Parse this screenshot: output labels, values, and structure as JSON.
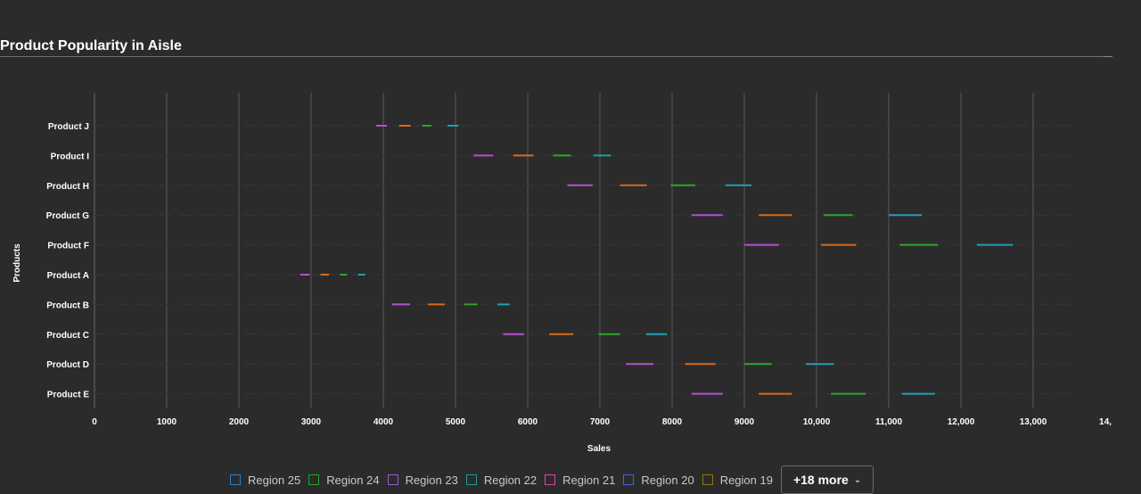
{
  "page": {
    "title": "Product Popularity in Aisle"
  },
  "legend": {
    "items": [
      {
        "label": "Region 25",
        "color": "#2f7fc1"
      },
      {
        "label": "Region 24",
        "color": "#25a52b"
      },
      {
        "label": "Region 23",
        "color": "#9b59d6"
      },
      {
        "label": "Region 22",
        "color": "#1f9b94"
      },
      {
        "label": "Region 21",
        "color": "#e0479e"
      },
      {
        "label": "Region 20",
        "color": "#4a5ee0"
      },
      {
        "label": "Region 19",
        "color": "#8a7a10"
      }
    ],
    "more_label": "+18 more",
    "more_icon": "chevron-down-icon"
  },
  "chart_data": {
    "type": "range",
    "title": "Product Popularity in Aisle",
    "xlabel": "Sales",
    "ylabel": "Products",
    "xlim": [
      0,
      14000
    ],
    "x_ticks": [
      "0",
      "1000",
      "2000",
      "3000",
      "4000",
      "5000",
      "6000",
      "7000",
      "8000",
      "9000",
      "10,000",
      "11,000",
      "12,000",
      "13,000",
      "14,"
    ],
    "grid": "vertical",
    "legend_position": "bottom",
    "categories": [
      "Product J",
      "Product I",
      "Product H",
      "Product G",
      "Product F",
      "Product A",
      "Product B",
      "Product C",
      "Product D",
      "Product E"
    ],
    "series": [
      {
        "color": "#b44fd6",
        "ranges": [
          [
            3900,
            4050
          ],
          [
            5250,
            5520
          ],
          [
            6550,
            6900
          ],
          [
            8270,
            8700
          ],
          [
            9000,
            9480
          ],
          [
            2850,
            2980
          ],
          [
            4120,
            4370
          ],
          [
            5660,
            5950
          ],
          [
            7360,
            7740
          ],
          [
            8270,
            8700
          ]
        ]
      },
      {
        "color": "#d96a1a",
        "ranges": [
          [
            4220,
            4380
          ],
          [
            5800,
            6080
          ],
          [
            7280,
            7650
          ],
          [
            9200,
            9660
          ],
          [
            10060,
            10550
          ],
          [
            3130,
            3250
          ],
          [
            4620,
            4850
          ],
          [
            6300,
            6630
          ],
          [
            8180,
            8600
          ],
          [
            9200,
            9660
          ]
        ]
      },
      {
        "color": "#2aa82a",
        "ranges": [
          [
            4540,
            4670
          ],
          [
            6350,
            6600
          ],
          [
            7980,
            8320
          ],
          [
            10100,
            10500
          ],
          [
            11150,
            11680
          ],
          [
            3400,
            3500
          ],
          [
            5120,
            5300
          ],
          [
            6980,
            7280
          ],
          [
            9000,
            9380
          ],
          [
            10200,
            10680
          ]
        ]
      },
      {
        "color": "#21a0b2",
        "ranges": [
          [
            4890,
            5040
          ],
          [
            6910,
            7150
          ],
          [
            8740,
            9100
          ],
          [
            11000,
            11460
          ],
          [
            12220,
            12720
          ],
          [
            3650,
            3750
          ],
          [
            5580,
            5750
          ],
          [
            7640,
            7930
          ],
          [
            9850,
            10240
          ],
          [
            11180,
            11640
          ]
        ]
      }
    ]
  }
}
